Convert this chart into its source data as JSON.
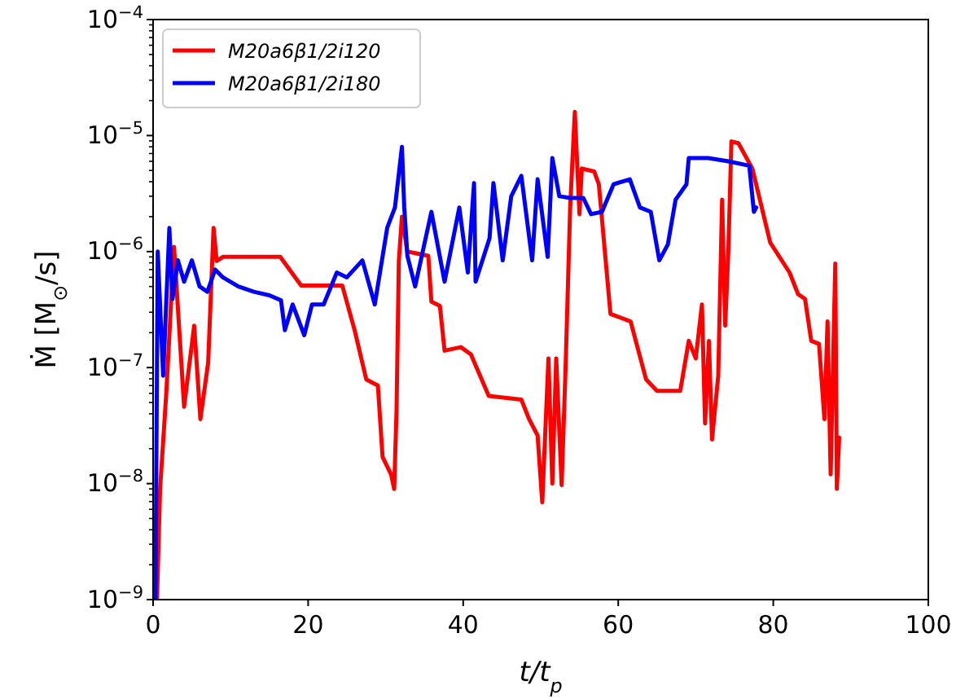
{
  "chart_data": {
    "type": "line",
    "xlabel": "t/t$_{p}$",
    "ylabel": "Ṁ [M$_{⊙}$/s]",
    "log": "y",
    "legend": "top left",
    "line_style": "solid",
    "marker": "none",
    "grid": false,
    "xlim": [
      0,
      100
    ],
    "xticks": [
      0,
      20,
      40,
      60,
      80,
      100
    ],
    "ylim": [
      1e-09,
      0.0001
    ],
    "yticks": [
      {
        "value": 1e-09,
        "label": "10$^{−9}$"
      },
      {
        "value": 1e-08,
        "label": "10$^{−8}$"
      },
      {
        "value": 1e-07,
        "label": "10$^{−7}$"
      },
      {
        "value": 1e-06,
        "label": "10$^{−6}$"
      },
      {
        "value": 1e-05,
        "label": "10$^{−5}$"
      },
      {
        "value": 0.0001,
        "label": "10$^{−4}$"
      }
    ],
    "series": [
      {
        "name": "M20a6β1/2i120",
        "color": "#ff0000",
        "x": [
          0.5,
          0.9,
          1.7,
          2.7,
          4,
          5.3,
          6.1,
          7.1,
          7.8,
          8.2,
          9,
          16.4,
          19.1,
          24.4,
          26,
          27.5,
          29,
          29.6,
          30.7,
          31.1,
          31.4,
          31.7,
          32.1,
          32.8,
          35.5,
          35.9,
          37,
          37.6,
          39.7,
          41,
          43.3,
          47.5,
          48.5,
          49.6,
          50.2,
          51,
          51.5,
          52,
          52.7,
          53.2,
          53.8,
          54.4,
          55,
          55.3,
          56.9,
          57.5,
          59,
          61.6,
          62.6,
          63.6,
          65,
          68,
          69.1,
          70,
          70.8,
          71.2,
          71.7,
          72.1,
          72.9,
          73.4,
          73.8,
          74.2,
          74.6,
          75.5,
          77.3,
          79.6,
          82.1,
          83.2,
          84.1,
          84.9,
          85.9,
          86.6,
          87,
          87.4,
          88,
          88.2,
          88.5
        ],
        "values": [
          1e-09,
          9e-09,
          6e-08,
          1.1e-06,
          4.6e-08,
          2.3e-07,
          3.6e-08,
          1.1e-07,
          1.6e-06,
          8.3e-07,
          9e-07,
          9e-07,
          5.1e-07,
          5.1e-07,
          2.1e-07,
          7.9e-08,
          7e-08,
          1.7e-08,
          1.2e-08,
          9e-09,
          4.2e-08,
          8.3e-07,
          2e-06,
          1e-06,
          9.2e-07,
          3.7e-07,
          3.4e-07,
          1.4e-07,
          1.5e-07,
          1.3e-07,
          5.7e-08,
          5.3e-08,
          3.6e-08,
          2.6e-08,
          6.9e-09,
          1.2e-07,
          1e-08,
          1.2e-07,
          9.7e-09,
          9.6e-08,
          2.4e-06,
          1.6e-05,
          2.1e-06,
          5.2e-06,
          4.9e-06,
          3.8e-06,
          2.9e-07,
          2.5e-07,
          1.4e-07,
          7.9e-08,
          6.3e-08,
          6.3e-08,
          1.7e-07,
          1.2e-07,
          3.5e-07,
          3.3e-08,
          1.7e-07,
          2.4e-08,
          8.5e-08,
          2.8e-06,
          2.3e-07,
          1e-06,
          8.9e-06,
          8.6e-06,
          5.2e-06,
          1.2e-06,
          6.6e-07,
          4.3e-07,
          3.9e-07,
          1.7e-07,
          1.6e-07,
          3.6e-08,
          2.5e-07,
          1.2e-08,
          7.9e-07,
          9e-09,
          2.5e-08
        ]
      },
      {
        "name": "M20a6β1/2i180",
        "color": "#0000ff",
        "x": [
          0.3,
          0.6,
          1.3,
          2.1,
          2.5,
          3.2,
          4,
          5,
          6,
          7,
          8,
          9,
          11,
          13,
          15,
          16.5,
          17,
          18,
          19.5,
          20.5,
          22,
          23.7,
          25,
          27,
          28.6,
          30.2,
          31.2,
          32.1,
          32.4,
          32.8,
          33.8,
          35.9,
          37.6,
          39.5,
          40.6,
          41.4,
          41.6,
          43.4,
          43.9,
          45.1,
          46.2,
          47.5,
          48.9,
          49.6,
          50.9,
          51.5,
          52.4,
          53.8,
          55.5,
          56.5,
          57.9,
          59.4,
          61.5,
          62.8,
          64.2,
          65.3,
          66.4,
          67.4,
          68.8,
          69.1,
          71.6,
          74.2,
          76.9,
          77.5,
          77.8
        ],
        "values": [
          1e-09,
          1e-06,
          8.5e-08,
          1.6e-06,
          3.9e-07,
          8.4e-07,
          5.5e-07,
          8.4e-07,
          5e-07,
          4.5e-07,
          7e-07,
          6e-07,
          5e-07,
          4.5e-07,
          4.2e-07,
          3.8e-07,
          2.1e-07,
          3.5e-07,
          1.9e-07,
          3.5e-07,
          3.5e-07,
          6.6e-07,
          6e-07,
          8.4e-07,
          3.5e-07,
          1.6e-06,
          2.4e-06,
          8e-06,
          2.4e-06,
          9.2e-07,
          5e-07,
          2.2e-06,
          5.5e-07,
          2.4e-06,
          6.6e-07,
          3.9e-06,
          5.5e-07,
          1.3e-06,
          3.9e-06,
          8.4e-07,
          3e-06,
          4.5e-06,
          8.4e-07,
          4.2e-06,
          9e-07,
          6.4e-06,
          3e-06,
          2.9e-06,
          2.9e-06,
          2.1e-06,
          2.2e-06,
          3.8e-06,
          4.2e-06,
          2.4e-06,
          2.2e-06,
          8.4e-07,
          1.15e-06,
          2.8e-06,
          3.8e-06,
          6.4e-06,
          6.4e-06,
          6e-06,
          5.5e-06,
          2.2e-06,
          2.4e-06
        ]
      }
    ]
  }
}
